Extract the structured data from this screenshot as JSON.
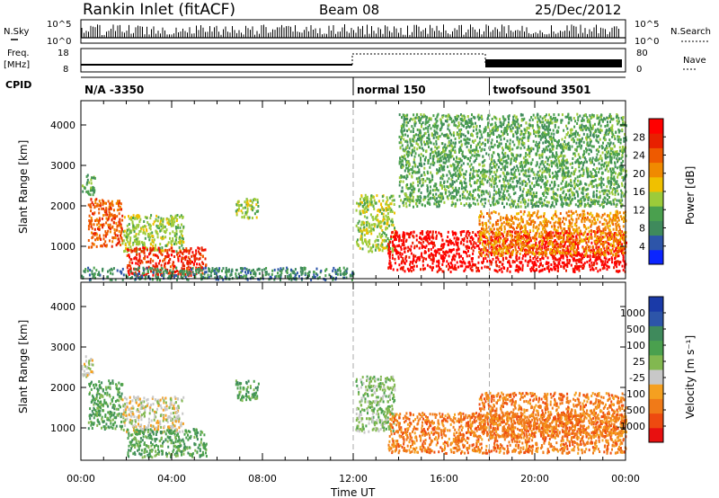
{
  "header": {
    "station": "Rankin Inlet (fitACF)",
    "beam": "Beam 08",
    "date": "25/Dec/2012"
  },
  "status_panels": {
    "nsky_label": "N.Sky",
    "nsky_top_tick": "10^5",
    "nsky_bottom_tick": "10^0",
    "nsearch_label": "N.Search",
    "nsearch_top_tick": "10^5",
    "nsearch_bottom_tick": "10^0",
    "freq_label_line1": "Freq.",
    "freq_label_line2": "[MHz]",
    "freq_ticks": [
      "18",
      "8"
    ],
    "nave_label": "Nave",
    "nave_ticks": [
      "80",
      "0"
    ],
    "cpid_label": "CPID",
    "cpid_segments": [
      {
        "label": "N/A -3350",
        "start_hour": 0,
        "end_hour": 12
      },
      {
        "label": "normal 150",
        "start_hour": 12,
        "end_hour": 18
      },
      {
        "label": "twofsound 3501",
        "start_hour": 18,
        "end_hour": 24
      }
    ]
  },
  "colors": {
    "axis": "#000000",
    "dashed_divider": "#aaaaaa",
    "power_scale": [
      "#0b25ff",
      "#2d55a9",
      "#3f8a5c",
      "#4aa04e",
      "#9ccb3a",
      "#f0c000",
      "#f08a00",
      "#ee5a00",
      "#e82000",
      "#ff0000"
    ],
    "velocity_scale": [
      "#e81010",
      "#ee4a10",
      "#f07a18",
      "#f5a020",
      "#c8c8c8",
      "#82b850",
      "#4aa04e",
      "#3f8a5c",
      "#2d55a9",
      "#1a3aa8"
    ]
  },
  "chart_data": [
    {
      "type": "heatmap",
      "panel": "power",
      "ylabel": "Slant Range [km]",
      "ylim": [
        200,
        4600
      ],
      "y_ticks": [
        "1000",
        "2000",
        "3000",
        "4000"
      ],
      "xlim_hours": [
        0,
        24
      ],
      "colorbar": {
        "label": "Power [dB]",
        "ticks": [
          "28",
          "24",
          "20",
          "16",
          "12",
          "8",
          "4"
        ]
      },
      "features": [
        {
          "start_hour": 0.0,
          "end_hour": 0.6,
          "min_km": 2300,
          "max_km": 2800,
          "value_db": 10
        },
        {
          "start_hour": 0.3,
          "end_hour": 1.8,
          "min_km": 1000,
          "max_km": 2200,
          "value_db": 22
        },
        {
          "start_hour": 1.8,
          "end_hour": 4.5,
          "min_km": 900,
          "max_km": 1800,
          "value_db": 12
        },
        {
          "start_hour": 2.0,
          "end_hour": 5.5,
          "min_km": 300,
          "max_km": 1000,
          "value_db": 26
        },
        {
          "start_hour": 6.8,
          "end_hour": 7.8,
          "min_km": 1700,
          "max_km": 2200,
          "value_db": 14
        },
        {
          "start_hour": 0.0,
          "end_hour": 12.0,
          "min_km": 200,
          "max_km": 500,
          "value_db": 6
        },
        {
          "start_hour": 12.1,
          "end_hour": 13.8,
          "min_km": 900,
          "max_km": 2300,
          "value_db": 14
        },
        {
          "start_hour": 13.5,
          "end_hour": 24.0,
          "min_km": 400,
          "max_km": 1400,
          "value_db": 28
        },
        {
          "start_hour": 17.5,
          "end_hour": 24.0,
          "min_km": 800,
          "max_km": 1900,
          "value_db": 20
        },
        {
          "start_hour": 14.0,
          "end_hour": 24.0,
          "min_km": 2000,
          "max_km": 4300,
          "value_db": 8
        }
      ]
    },
    {
      "type": "heatmap",
      "panel": "velocity",
      "ylabel": "Slant Range [km]",
      "xlabel": "Time UT",
      "ylim": [
        200,
        4600
      ],
      "y_ticks": [
        "1000",
        "2000",
        "3000",
        "4000"
      ],
      "x_ticks": [
        "00:00",
        "04:00",
        "08:00",
        "12:00",
        "16:00",
        "20:00",
        "00:00"
      ],
      "xlim_hours": [
        0,
        24
      ],
      "colorbar": {
        "label": "Velocity [m s⁻¹]",
        "ticks": [
          "1000",
          "500",
          "100",
          "25",
          "-25",
          "-100",
          "-500",
          "-1000"
        ]
      },
      "features": [
        {
          "start_hour": 0.0,
          "end_hour": 0.5,
          "min_km": 2300,
          "max_km": 2800,
          "value_ms": 0
        },
        {
          "start_hour": 0.3,
          "end_hour": 1.8,
          "min_km": 1000,
          "max_km": 2200,
          "value_ms": 150
        },
        {
          "start_hour": 1.8,
          "end_hour": 4.5,
          "min_km": 900,
          "max_km": 1800,
          "value_ms": 0
        },
        {
          "start_hour": 2.0,
          "end_hour": 5.5,
          "min_km": 300,
          "max_km": 1000,
          "value_ms": 150
        },
        {
          "start_hour": 6.8,
          "end_hour": 7.8,
          "min_km": 1700,
          "max_km": 2200,
          "value_ms": 120
        },
        {
          "start_hour": 12.1,
          "end_hour": 13.8,
          "min_km": 900,
          "max_km": 2300,
          "value_ms": 60
        },
        {
          "start_hour": 13.5,
          "end_hour": 24.0,
          "min_km": 400,
          "max_km": 1400,
          "value_ms": -200
        },
        {
          "start_hour": 17.5,
          "end_hour": 24.0,
          "min_km": 800,
          "max_km": 1900,
          "value_ms": -150
        }
      ]
    }
  ]
}
